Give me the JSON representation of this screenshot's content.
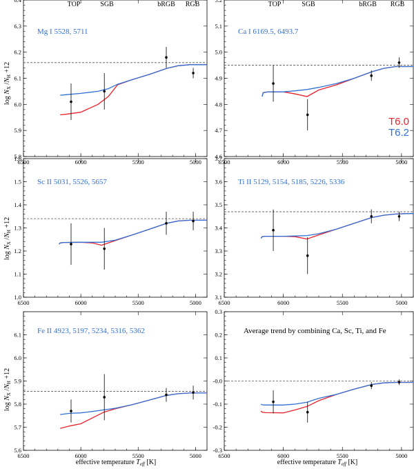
{
  "figure": {
    "xlabel_effective": "effective temperature",
    "xlabel_teff": "T",
    "xlabel_teff_sub": "eff",
    "xlabel_unit": "[K]",
    "ylabel_log": "log",
    "ylabel_n": "N",
    "ylabel_x": "X",
    "ylabel_sep": "/",
    "ylabel_h": "H",
    "ylabel_plus": "+12",
    "legend": [
      {
        "label": "T6.0",
        "color": "#e8202a"
      },
      {
        "label": "T6.2",
        "color": "#2f6fd6"
      }
    ],
    "top_labels": [
      "TOP",
      "SGB",
      "bRGB",
      "RGB"
    ],
    "colors": {
      "model_t60": "#e8202a",
      "model_t62": "#2f6fd6",
      "observed": "#000000",
      "panel_title": "#2f6fd6"
    }
  },
  "chart_data": [
    {
      "type": "line",
      "id": "mg",
      "title": "Mg I 5528, 5711",
      "xlim": [
        6500,
        4900
      ],
      "ylim": [
        5.8,
        6.4
      ],
      "xticks": [
        6500,
        6000,
        5500,
        5000
      ],
      "yticks": [
        5.8,
        5.9,
        6.0,
        6.1,
        6.2,
        6.3,
        6.4
      ],
      "ytick_labels": [
        "5.8",
        "5.9",
        "6.0",
        "6.1",
        "6.2",
        "6.3",
        "6.4"
      ],
      "reference": 6.16,
      "observed": [
        {
          "label": "TOP",
          "teff": 6085,
          "value": 6.01,
          "err": 0.07
        },
        {
          "label": "SGB",
          "teff": 5795,
          "value": 6.05,
          "err": 0.07
        },
        {
          "label": "bRGB",
          "teff": 5255,
          "value": 6.18,
          "err": 0.04
        },
        {
          "label": "RGB",
          "teff": 5020,
          "value": 6.12,
          "err": 0.02
        }
      ],
      "series": [
        {
          "name": "T6.0",
          "x": [
            6180,
            6130,
            6000,
            5850,
            5760,
            5680,
            5550,
            5400,
            5250,
            5150,
            5050,
            4950,
            4900
          ],
          "values": [
            5.96,
            5.962,
            5.97,
            6.0,
            6.03,
            6.075,
            6.095,
            6.115,
            6.138,
            6.148,
            6.152,
            6.152,
            6.152
          ]
        },
        {
          "name": "T6.2",
          "x": [
            6180,
            6130,
            6000,
            5850,
            5760,
            5680,
            5550,
            5400,
            5250,
            5150,
            5050,
            4950,
            4900
          ],
          "values": [
            6.035,
            6.037,
            6.042,
            6.05,
            6.06,
            6.077,
            6.095,
            6.115,
            6.138,
            6.148,
            6.152,
            6.152,
            6.152
          ]
        }
      ]
    },
    {
      "type": "line",
      "id": "ca",
      "title": "Ca I 6169.5, 6493.7",
      "xlim": [
        6500,
        4900
      ],
      "ylim": [
        4.6,
        5.2
      ],
      "xticks": [
        6500,
        6000,
        5500,
        5000
      ],
      "yticks": [
        4.6,
        4.7,
        4.8,
        4.9,
        5.0,
        5.1,
        5.2
      ],
      "ytick_labels": [
        "4.6",
        "4.7",
        "4.8",
        "4.9",
        "5.0",
        "5.1",
        "5.2"
      ],
      "reference": 4.95,
      "observed": [
        {
          "label": "TOP",
          "teff": 6085,
          "value": 4.88,
          "err": 0.07
        },
        {
          "label": "SGB",
          "teff": 5795,
          "value": 4.76,
          "err": 0.06
        },
        {
          "label": "bRGB",
          "teff": 5255,
          "value": 4.91,
          "err": 0.02
        },
        {
          "label": "RGB",
          "teff": 5020,
          "value": 4.96,
          "err": 0.02
        }
      ],
      "series": [
        {
          "name": "T6.0",
          "x": [
            6180,
            6170,
            6130,
            6000,
            5900,
            5800,
            5700,
            5550,
            5400,
            5250,
            5150,
            5050,
            4950,
            4900
          ],
          "values": [
            4.83,
            4.845,
            4.848,
            4.848,
            4.84,
            4.83,
            4.855,
            4.875,
            4.9,
            4.925,
            4.938,
            4.945,
            4.945,
            4.945
          ]
        },
        {
          "name": "T6.2",
          "x": [
            6180,
            6170,
            6130,
            6000,
            5900,
            5800,
            5700,
            5550,
            5400,
            5250,
            5150,
            5050,
            4950,
            4900
          ],
          "values": [
            4.83,
            4.845,
            4.848,
            4.848,
            4.852,
            4.857,
            4.865,
            4.88,
            4.9,
            4.925,
            4.938,
            4.945,
            4.945,
            4.945
          ]
        }
      ]
    },
    {
      "type": "line",
      "id": "sc",
      "title": "Sc II 5031, 5526, 5657",
      "xlim": [
        6500,
        4900
      ],
      "ylim": [
        1.0,
        1.6
      ],
      "xticks": [
        6500,
        6000,
        5500,
        5000
      ],
      "yticks": [
        1.0,
        1.1,
        1.2,
        1.3,
        1.4,
        1.5,
        1.6
      ],
      "ytick_labels": [
        "1.0",
        "1.1",
        "1.2",
        "1.3",
        "1.4",
        "1.5",
        "1.6"
      ],
      "reference": 1.34,
      "observed": [
        {
          "label": "TOP",
          "teff": 6085,
          "value": 1.23,
          "err": 0.09
        },
        {
          "label": "SGB",
          "teff": 5795,
          "value": 1.21,
          "err": 0.09
        },
        {
          "label": "bRGB",
          "teff": 5255,
          "value": 1.32,
          "err": 0.05
        },
        {
          "label": "RGB",
          "teff": 5020,
          "value": 1.33,
          "err": 0.04
        }
      ],
      "series": [
        {
          "name": "T6.0",
          "x": [
            6190,
            6180,
            6150,
            6000,
            5900,
            5820,
            5700,
            5550,
            5400,
            5250,
            5150,
            5050,
            4950,
            4900
          ],
          "values": [
            1.23,
            1.235,
            1.237,
            1.238,
            1.235,
            1.225,
            1.245,
            1.27,
            1.295,
            1.32,
            1.33,
            1.333,
            1.333,
            1.333
          ]
        },
        {
          "name": "T6.2",
          "x": [
            6190,
            6180,
            6150,
            6000,
            5900,
            5820,
            5700,
            5550,
            5400,
            5250,
            5150,
            5050,
            4950,
            4900
          ],
          "values": [
            1.23,
            1.235,
            1.237,
            1.238,
            1.238,
            1.238,
            1.247,
            1.27,
            1.295,
            1.32,
            1.33,
            1.333,
            1.333,
            1.333
          ]
        }
      ]
    },
    {
      "type": "line",
      "id": "ti",
      "title": "Ti II 5129, 5154, 5185, 5226, 5336",
      "xlim": [
        6500,
        4900
      ],
      "ylim": [
        3.1,
        3.7
      ],
      "xticks": [
        6500,
        6000,
        5500,
        5000
      ],
      "yticks": [
        3.1,
        3.2,
        3.3,
        3.4,
        3.5,
        3.6,
        3.7
      ],
      "ytick_labels": [
        "3.1",
        "3.2",
        "3.3",
        "3.4",
        "3.5",
        "3.6",
        "3.7"
      ],
      "reference": 3.47,
      "observed": [
        {
          "label": "TOP",
          "teff": 6085,
          "value": 3.39,
          "err": 0.09
        },
        {
          "label": "SGB",
          "teff": 5795,
          "value": 3.28,
          "err": 0.08
        },
        {
          "label": "bRGB",
          "teff": 5255,
          "value": 3.45,
          "err": 0.03
        },
        {
          "label": "RGB",
          "teff": 5020,
          "value": 3.45,
          "err": 0.02
        }
      ],
      "series": [
        {
          "name": "T6.0",
          "x": [
            6190,
            6180,
            6150,
            6000,
            5900,
            5800,
            5700,
            5550,
            5400,
            5250,
            5150,
            5050,
            4950,
            4900
          ],
          "values": [
            3.355,
            3.362,
            3.364,
            3.364,
            3.362,
            3.352,
            3.37,
            3.395,
            3.42,
            3.445,
            3.455,
            3.46,
            3.462,
            3.462
          ]
        },
        {
          "name": "T6.2",
          "x": [
            6190,
            6180,
            6150,
            6000,
            5900,
            5800,
            5700,
            5550,
            5400,
            5250,
            5150,
            5050,
            4950,
            4900
          ],
          "values": [
            3.355,
            3.362,
            3.364,
            3.364,
            3.365,
            3.367,
            3.375,
            3.395,
            3.42,
            3.445,
            3.455,
            3.46,
            3.462,
            3.462
          ]
        }
      ]
    },
    {
      "type": "line",
      "id": "fe",
      "title": "Fe II 4923, 5197, 5234, 5316, 5362",
      "xlim": [
        6500,
        4900
      ],
      "ylim": [
        5.6,
        6.2
      ],
      "xticks": [
        6500,
        6000,
        5500,
        5000
      ],
      "yticks": [
        5.6,
        5.7,
        5.8,
        5.9,
        6.0,
        6.1
      ],
      "ytick_labels": [
        "5.6",
        "5.7",
        "5.8",
        "5.9",
        "6.0",
        "6.1"
      ],
      "reference": 5.855,
      "observed": [
        {
          "label": "TOP",
          "teff": 6085,
          "value": 5.77,
          "err": 0.05
        },
        {
          "label": "SGB",
          "teff": 5795,
          "value": 5.83,
          "err": 0.1
        },
        {
          "label": "bRGB",
          "teff": 5255,
          "value": 5.84,
          "err": 0.03
        },
        {
          "label": "RGB",
          "teff": 5020,
          "value": 5.85,
          "err": 0.03
        }
      ],
      "series": [
        {
          "name": "T6.0",
          "x": [
            6180,
            6100,
            6000,
            5900,
            5800,
            5700,
            5550,
            5400,
            5250,
            5150,
            5050,
            4950,
            4900
          ],
          "values": [
            5.695,
            5.705,
            5.715,
            5.74,
            5.765,
            5.78,
            5.798,
            5.818,
            5.838,
            5.845,
            5.848,
            5.848,
            5.848
          ]
        },
        {
          "name": "T6.2",
          "x": [
            6180,
            6100,
            6000,
            5900,
            5800,
            5700,
            5550,
            5400,
            5250,
            5150,
            5050,
            4950,
            4900
          ],
          "values": [
            5.755,
            5.76,
            5.762,
            5.768,
            5.775,
            5.782,
            5.798,
            5.818,
            5.838,
            5.845,
            5.848,
            5.848,
            5.848
          ]
        }
      ]
    },
    {
      "type": "line",
      "id": "avg",
      "title": "Average trend by combining Ca, Sc, Ti, and Fe",
      "xlim": [
        6500,
        4900
      ],
      "ylim": [
        -0.3,
        0.3
      ],
      "xticks": [
        6500,
        6000,
        5500,
        5000
      ],
      "yticks": [
        -0.3,
        -0.2,
        -0.1,
        0.0,
        0.1,
        0.2,
        0.3
      ],
      "ytick_labels": [
        "-0.3",
        "-0.2",
        "-0.1",
        "-0.0",
        "0.1",
        "0.2",
        "0.3"
      ],
      "reference": 0.0,
      "observed": [
        {
          "label": "TOP",
          "teff": 6085,
          "value": -0.09,
          "err": 0.05
        },
        {
          "label": "SGB",
          "teff": 5795,
          "value": -0.135,
          "err": 0.045
        },
        {
          "label": "bRGB",
          "teff": 5255,
          "value": -0.02,
          "err": 0.015
        },
        {
          "label": "RGB",
          "teff": 5020,
          "value": -0.005,
          "err": 0.012
        }
      ],
      "series": [
        {
          "name": "T6.0",
          "x": [
            6190,
            6180,
            6150,
            6000,
            5900,
            5800,
            5700,
            5550,
            5400,
            5250,
            5150,
            5050,
            4950,
            4900
          ],
          "values": [
            -0.13,
            -0.135,
            -0.137,
            -0.138,
            -0.125,
            -0.11,
            -0.085,
            -0.058,
            -0.035,
            -0.015,
            -0.008,
            -0.006,
            -0.006,
            -0.006
          ]
        },
        {
          "name": "T6.2",
          "x": [
            6190,
            6180,
            6150,
            6000,
            5900,
            5800,
            5700,
            5550,
            5400,
            5250,
            5150,
            5050,
            4950,
            4900
          ],
          "values": [
            -0.1,
            -0.103,
            -0.104,
            -0.104,
            -0.1,
            -0.092,
            -0.075,
            -0.058,
            -0.035,
            -0.015,
            -0.008,
            -0.006,
            -0.006,
            -0.006
          ]
        }
      ]
    }
  ]
}
